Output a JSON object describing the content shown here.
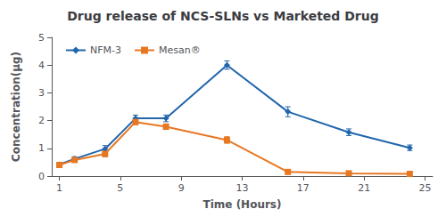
{
  "chart_data": {
    "type": "line",
    "title": "Drug release of NCS-SLNs vs Marketed Drug",
    "x_label": "Time (Hours)",
    "y_label": "Concentration(µg)",
    "x": [
      1,
      2,
      4,
      6,
      8,
      12,
      16,
      20,
      24
    ],
    "series": [
      {
        "name": "NFM-3",
        "color": "#2166ac",
        "marker": "diamond",
        "values": [
          0.42,
          0.62,
          0.98,
          2.08,
          2.08,
          4.0,
          2.32,
          1.58,
          1.02
        ],
        "errors": [
          0.07,
          0.08,
          0.12,
          0.12,
          0.12,
          0.15,
          0.18,
          0.12,
          0.1
        ]
      },
      {
        "name": "Mesan®",
        "color": "#e87722",
        "marker": "square",
        "values": [
          0.4,
          0.58,
          0.8,
          1.95,
          1.78,
          1.3,
          0.15,
          0.1,
          0.08
        ],
        "errors": [
          0.06,
          0.07,
          0.1,
          0.1,
          0.1,
          0.12,
          0.05,
          0.06,
          0.04
        ]
      }
    ],
    "xlim": [
      0.5,
      25.5
    ],
    "xticks": [
      1,
      5,
      9,
      13,
      17,
      21,
      25
    ],
    "ylim": [
      0,
      5
    ],
    "yticks": [
      0,
      1,
      2,
      3,
      4,
      5
    ],
    "grid": false,
    "legend": "upper left"
  }
}
